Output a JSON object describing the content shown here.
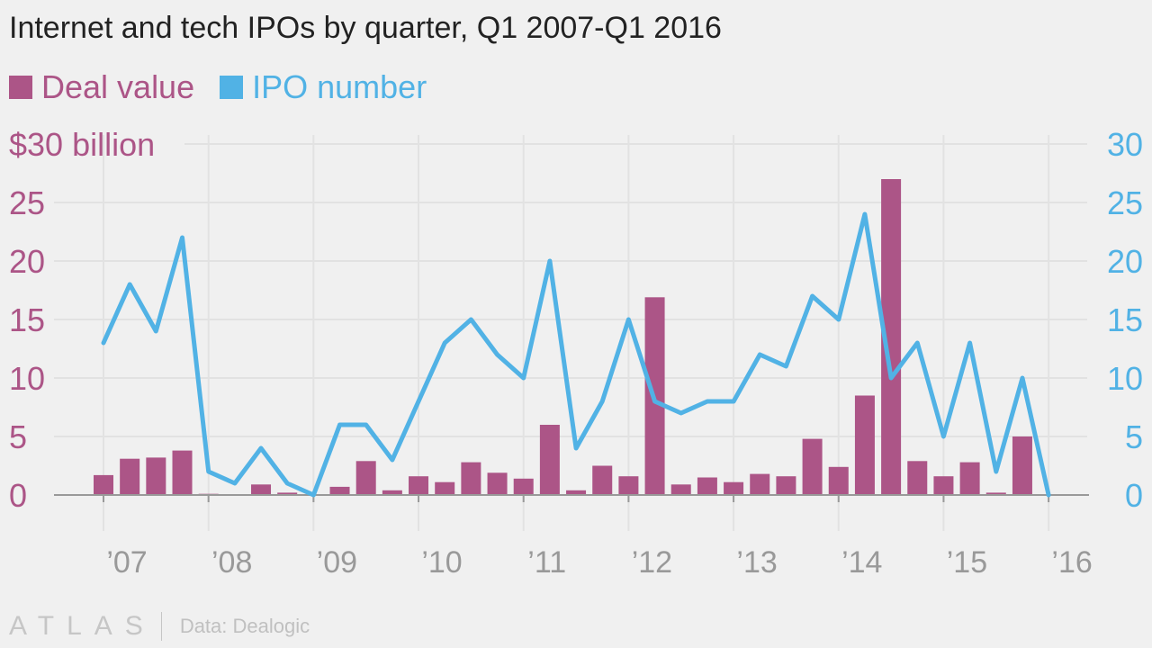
{
  "title": "Internet and tech IPOs by quarter, Q1 2007-Q1 2016",
  "legend": {
    "deal_value": "Deal value",
    "ipo_number": "IPO number"
  },
  "colors": {
    "deal_value": "#ac5587",
    "ipo_number": "#51b2e5",
    "grid": "#e2e2e2",
    "axis": "#999999",
    "x_tick": "#999999"
  },
  "footer": {
    "logo": "ATLAS",
    "source": "Data: Dealogic"
  },
  "chart_data": {
    "type": "bar",
    "title": "Internet and tech IPOs by quarter, Q1 2007-Q1 2016",
    "x": [
      "Q1 2007",
      "Q2 2007",
      "Q3 2007",
      "Q4 2007",
      "Q1 2008",
      "Q2 2008",
      "Q3 2008",
      "Q4 2008",
      "Q1 2009",
      "Q2 2009",
      "Q3 2009",
      "Q4 2009",
      "Q1 2010",
      "Q2 2010",
      "Q3 2010",
      "Q4 2010",
      "Q1 2011",
      "Q2 2011",
      "Q3 2011",
      "Q4 2011",
      "Q1 2012",
      "Q2 2012",
      "Q3 2012",
      "Q4 2012",
      "Q1 2013",
      "Q2 2013",
      "Q3 2013",
      "Q4 2013",
      "Q1 2014",
      "Q2 2014",
      "Q3 2014",
      "Q4 2014",
      "Q1 2015",
      "Q2 2015",
      "Q3 2015",
      "Q4 2015",
      "Q1 2016"
    ],
    "x_tick_labels": [
      "’07",
      "’08",
      "’09",
      "’10",
      "’11",
      "’12",
      "’13",
      "’14",
      "’15",
      "’16"
    ],
    "y_left": {
      "ylim": [
        0,
        30
      ],
      "ticks": [
        0,
        5,
        10,
        15,
        20,
        25,
        30
      ],
      "tick_labels": [
        "0",
        "5",
        "10",
        "15",
        "20",
        "25",
        "$30 billion"
      ]
    },
    "y_right": {
      "ylim": [
        0,
        30
      ],
      "ticks": [
        0,
        5,
        10,
        15,
        20,
        25,
        30
      ],
      "tick_labels": [
        "0",
        "5",
        "10",
        "15",
        "20",
        "25",
        "30"
      ]
    },
    "legend_position": "top-left",
    "grid": true,
    "series": [
      {
        "name": "Deal value",
        "type": "bar",
        "axis": "left",
        "values": [
          1.7,
          3.1,
          3.2,
          3.8,
          0.1,
          0,
          0.9,
          0.2,
          0,
          0.7,
          2.9,
          0.4,
          1.6,
          1.1,
          2.8,
          1.9,
          1.4,
          6.0,
          0.4,
          2.5,
          1.6,
          16.9,
          0.9,
          1.5,
          1.1,
          1.8,
          1.6,
          4.8,
          2.4,
          8.5,
          27.0,
          2.9,
          1.6,
          2.8,
          0.2,
          5.0,
          0
        ]
      },
      {
        "name": "IPO number",
        "type": "line",
        "axis": "right",
        "values": [
          13,
          18,
          14,
          22,
          2,
          1,
          4,
          1,
          0,
          6,
          6,
          3,
          8,
          13,
          15,
          12,
          10,
          20,
          4,
          8,
          15,
          8,
          7,
          8,
          8,
          12,
          11,
          17,
          15,
          24,
          10,
          13,
          5,
          13,
          2,
          10,
          0
        ]
      }
    ]
  }
}
